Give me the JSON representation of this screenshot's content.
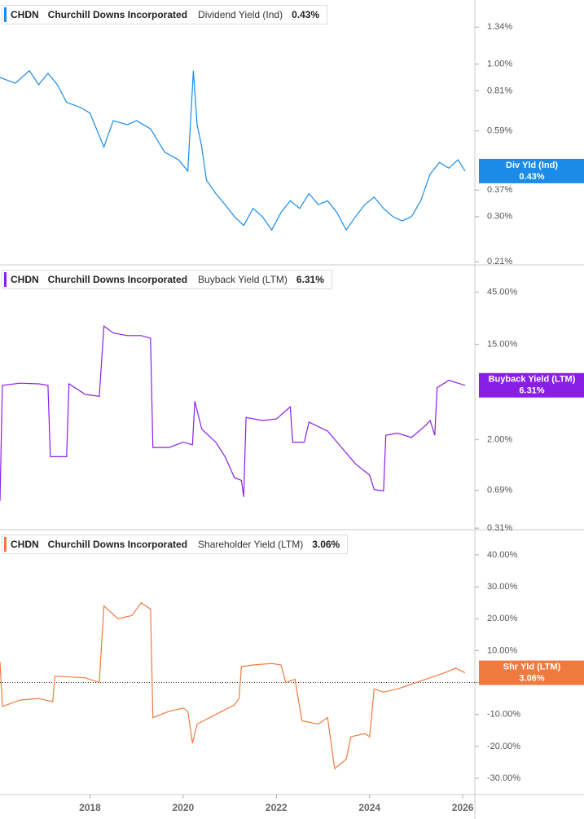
{
  "chart_data": [
    {
      "type": "line",
      "log_scale": true,
      "color": "#1a8be6",
      "header": {
        "ticker": "CHDN",
        "company": "Churchill Downs Incorporated",
        "metric": "Dividend Yield (Ind)",
        "value_label": "0.43%"
      },
      "current": {
        "label": "Div Yld (Ind)",
        "value": 0.43,
        "value_label": "0.43%"
      },
      "xlim": [
        2016.07,
        2026.26
      ],
      "ylim": [
        0.205,
        1.66
      ],
      "yticks": [
        {
          "value": 1.34,
          "label": "1.34%"
        },
        {
          "value": 1.0,
          "label": "1.00%"
        },
        {
          "value": 0.81,
          "label": "0.81%"
        },
        {
          "value": 0.59,
          "label": "0.59%"
        },
        {
          "value": 0.37,
          "label": "0.37%"
        },
        {
          "value": 0.3,
          "label": "0.30%"
        },
        {
          "value": 0.21,
          "label": "0.21%"
        }
      ],
      "x": [
        2016.07,
        2016.4,
        2016.7,
        2016.9,
        2017.1,
        2017.3,
        2017.5,
        2017.8,
        2018.0,
        2018.3,
        2018.5,
        2018.8,
        2019.0,
        2019.3,
        2019.6,
        2019.9,
        2020.1,
        2020.22,
        2020.3,
        2020.4,
        2020.5,
        2020.7,
        2020.9,
        2021.1,
        2021.3,
        2021.5,
        2021.7,
        2021.9,
        2022.1,
        2022.3,
        2022.5,
        2022.7,
        2022.9,
        2023.1,
        2023.3,
        2023.5,
        2023.7,
        2023.9,
        2024.1,
        2024.3,
        2024.5,
        2024.7,
        2024.9,
        2025.1,
        2025.3,
        2025.5,
        2025.7,
        2025.9,
        2026.05
      ],
      "values": [
        0.9,
        0.86,
        0.95,
        0.85,
        0.93,
        0.85,
        0.74,
        0.71,
        0.68,
        0.52,
        0.64,
        0.62,
        0.64,
        0.6,
        0.5,
        0.47,
        0.43,
        0.95,
        0.62,
        0.52,
        0.4,
        0.36,
        0.33,
        0.3,
        0.28,
        0.32,
        0.3,
        0.27,
        0.31,
        0.34,
        0.32,
        0.36,
        0.33,
        0.34,
        0.31,
        0.27,
        0.3,
        0.33,
        0.35,
        0.32,
        0.3,
        0.29,
        0.3,
        0.34,
        0.42,
        0.46,
        0.44,
        0.47,
        0.43
      ]
    },
    {
      "type": "line",
      "log_scale": true,
      "color": "#8a1ee6",
      "header": {
        "ticker": "CHDN",
        "company": "Churchill Downs Incorporated",
        "metric": "Buyback Yield (LTM)",
        "value_label": "6.31%"
      },
      "current": {
        "label": "Buyback Yield (LTM)",
        "value": 6.31,
        "value_label": "6.31%"
      },
      "xlim": [
        2016.07,
        2026.26
      ],
      "ylim": [
        0.3,
        80
      ],
      "yticks": [
        {
          "value": 45,
          "label": "45.00%"
        },
        {
          "value": 15,
          "label": "15.00%"
        },
        {
          "value": 2,
          "label": "2.00%"
        },
        {
          "value": 0.69,
          "label": "0.69%"
        },
        {
          "value": 0.31,
          "label": "0.31%"
        }
      ],
      "x": [
        2016.07,
        2016.12,
        2016.5,
        2016.9,
        2017.1,
        2017.15,
        2017.5,
        2017.55,
        2017.9,
        2018.2,
        2018.3,
        2018.5,
        2018.8,
        2019.1,
        2019.3,
        2019.35,
        2019.7,
        2020.0,
        2020.2,
        2020.25,
        2020.4,
        2020.7,
        2020.9,
        2021.1,
        2021.25,
        2021.3,
        2021.35,
        2021.7,
        2022.0,
        2022.3,
        2022.35,
        2022.6,
        2022.7,
        2023.1,
        2023.4,
        2023.7,
        2024.0,
        2024.1,
        2024.3,
        2024.35,
        2024.6,
        2024.9,
        2025.2,
        2025.3,
        2025.4,
        2025.45,
        2025.7,
        2025.9,
        2026.05
      ],
      "values": [
        0.55,
        6.3,
        6.6,
        6.5,
        6.3,
        1.4,
        1.4,
        6.5,
        5.2,
        5.0,
        22,
        19,
        18,
        18,
        17,
        1.7,
        1.7,
        1.9,
        1.8,
        4.5,
        2.5,
        1.9,
        1.4,
        0.9,
        0.85,
        0.6,
        3.2,
        3.0,
        3.1,
        4.0,
        1.9,
        1.9,
        2.9,
        2.4,
        1.7,
        1.2,
        0.95,
        0.7,
        0.68,
        2.2,
        2.3,
        2.1,
        2.7,
        3.0,
        2.2,
        6.0,
        7.0,
        6.6,
        6.31
      ]
    },
    {
      "type": "line",
      "log_scale": false,
      "color": "#f07a3e",
      "zero_line": true,
      "header": {
        "ticker": "CHDN",
        "company": "Churchill Downs Incorporated",
        "metric": "Shareholder Yield (LTM)",
        "value_label": "3.06%"
      },
      "current": {
        "label": "Shr Yld (LTM)",
        "value": 3.06,
        "value_label": "3.06%"
      },
      "xlim": [
        2016.07,
        2026.26
      ],
      "ylim": [
        -35.1,
        47.9
      ],
      "yticks": [
        {
          "value": 40,
          "label": "40.00%"
        },
        {
          "value": 30,
          "label": "30.00%"
        },
        {
          "value": 20,
          "label": "20.00%"
        },
        {
          "value": 10,
          "label": "10.00%"
        },
        {
          "value": 0,
          "label": "0.00%"
        },
        {
          "value": -10,
          "label": "-10.00%"
        },
        {
          "value": -20,
          "label": "-20.00%"
        },
        {
          "value": -30,
          "label": "-30.00%"
        }
      ],
      "xticks": [
        2018,
        2020,
        2022,
        2024,
        2026
      ],
      "x": [
        2016.07,
        2016.12,
        2016.5,
        2016.9,
        2017.2,
        2017.25,
        2017.9,
        2018.2,
        2018.3,
        2018.6,
        2018.9,
        2019.1,
        2019.3,
        2019.35,
        2019.7,
        2020.0,
        2020.1,
        2020.2,
        2020.3,
        2020.7,
        2021.1,
        2021.2,
        2021.25,
        2021.5,
        2021.9,
        2022.1,
        2022.2,
        2022.4,
        2022.55,
        2022.9,
        2023.1,
        2023.25,
        2023.5,
        2023.6,
        2023.9,
        2024.0,
        2024.1,
        2024.3,
        2024.6,
        2024.9,
        2025.3,
        2025.6,
        2025.85,
        2026.05
      ],
      "values": [
        6.5,
        -7.5,
        -5.5,
        -5,
        -6,
        2,
        1.5,
        0,
        24,
        20,
        21,
        25,
        23,
        -11,
        -9,
        -8,
        -9,
        -19,
        -13,
        -10,
        -7,
        -5,
        5,
        5.5,
        6,
        5.5,
        0,
        1,
        -12,
        -13,
        -11,
        -27,
        -24,
        -17,
        -16,
        -17,
        -2,
        -3,
        -2,
        -0.5,
        1.5,
        3,
        4.5,
        3.06
      ]
    }
  ]
}
